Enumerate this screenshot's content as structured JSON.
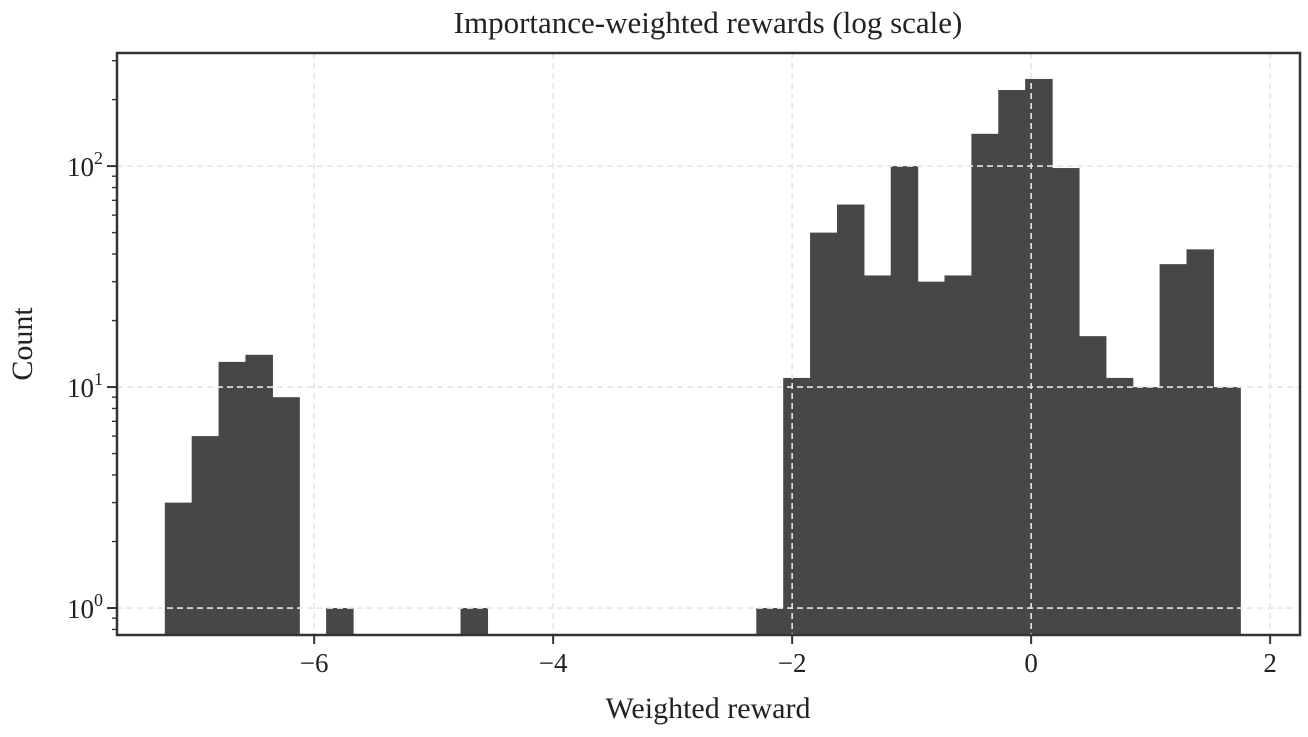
{
  "chart_data": {
    "type": "bar",
    "subtype": "histogram",
    "title": "Importance-weighted rewards (log scale)",
    "xlabel": "Weighted reward",
    "ylabel": "Count",
    "xlim": [
      -7.65,
      2.25
    ],
    "ylim": [
      0.755,
      325
    ],
    "yscale": "log",
    "grid": true,
    "bar_color": "#474747",
    "bin_start": -7.25,
    "bin_width": 0.225,
    "counts": [
      3,
      6,
      13,
      14,
      9,
      0,
      1,
      0,
      0,
      0,
      0,
      1,
      0,
      0,
      0,
      0,
      0,
      0,
      0,
      0,
      0,
      0,
      1,
      11,
      50,
      67,
      32,
      100,
      30,
      32,
      140,
      221,
      248,
      98,
      17,
      11,
      10,
      36,
      42,
      10
    ],
    "xticks": [
      {
        "value": -6,
        "label": "−6"
      },
      {
        "value": -4,
        "label": "−4"
      },
      {
        "value": -2,
        "label": "−2"
      },
      {
        "value": 0,
        "label": "0"
      },
      {
        "value": 2,
        "label": "2"
      }
    ],
    "yticks": [
      {
        "value": 1,
        "base": "10",
        "exp": "0"
      },
      {
        "value": 10,
        "base": "10",
        "exp": "1"
      },
      {
        "value": 100,
        "base": "10",
        "exp": "2"
      }
    ]
  }
}
